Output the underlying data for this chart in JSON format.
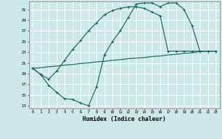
{
  "xlabel": "Humidex (Indice chaleur)",
  "bg_color": "#cce8e8",
  "grid_color": "#ffffff",
  "line_color": "#1a6b5a",
  "xlim": [
    -0.5,
    23.5
  ],
  "ylim": [
    12.5,
    32.5
  ],
  "yticks": [
    13,
    15,
    17,
    19,
    21,
    23,
    25,
    27,
    29,
    31
  ],
  "xticks": [
    0,
    1,
    2,
    3,
    4,
    5,
    6,
    7,
    8,
    9,
    10,
    11,
    12,
    13,
    14,
    15,
    16,
    17,
    18,
    19,
    20,
    21,
    22,
    23
  ],
  "line1_x": [
    0,
    1,
    2,
    3,
    4,
    5,
    6,
    7,
    8,
    9,
    10,
    11,
    12,
    13,
    14,
    15,
    16,
    17,
    18,
    19,
    20,
    21,
    22,
    23
  ],
  "line1_y": [
    20.0,
    18.8,
    16.8,
    15.5,
    14.3,
    14.2,
    13.5,
    13.0,
    16.5,
    22.5,
    25.0,
    27.0,
    29.5,
    32.0,
    32.2,
    32.2,
    31.5,
    32.2,
    32.2,
    31.0,
    28.0,
    23.2,
    23.2,
    23.2
  ],
  "line2_x": [
    0,
    1,
    2,
    3,
    4,
    5,
    6,
    7,
    8,
    9,
    10,
    11,
    12,
    13,
    14,
    15,
    16,
    17,
    18,
    19,
    20,
    21,
    22,
    23
  ],
  "line2_y": [
    20.0,
    18.8,
    18.0,
    19.5,
    21.5,
    23.5,
    25.2,
    27.0,
    28.5,
    30.0,
    30.8,
    31.2,
    31.5,
    31.5,
    31.2,
    30.5,
    29.8,
    23.2,
    23.2,
    23.2,
    23.2,
    23.2,
    23.2,
    23.2
  ],
  "line3_x": [
    0,
    1,
    2,
    3,
    4,
    5,
    6,
    7,
    8,
    9,
    10,
    11,
    12,
    13,
    14,
    15,
    16,
    17,
    18,
    19,
    20,
    21,
    22,
    23
  ],
  "line3_y": [
    20.0,
    20.1,
    20.3,
    20.4,
    20.6,
    20.7,
    20.9,
    21.0,
    21.2,
    21.3,
    21.5,
    21.6,
    21.8,
    21.9,
    22.0,
    22.2,
    22.3,
    22.5,
    22.6,
    22.8,
    22.9,
    23.1,
    23.2,
    23.2
  ]
}
